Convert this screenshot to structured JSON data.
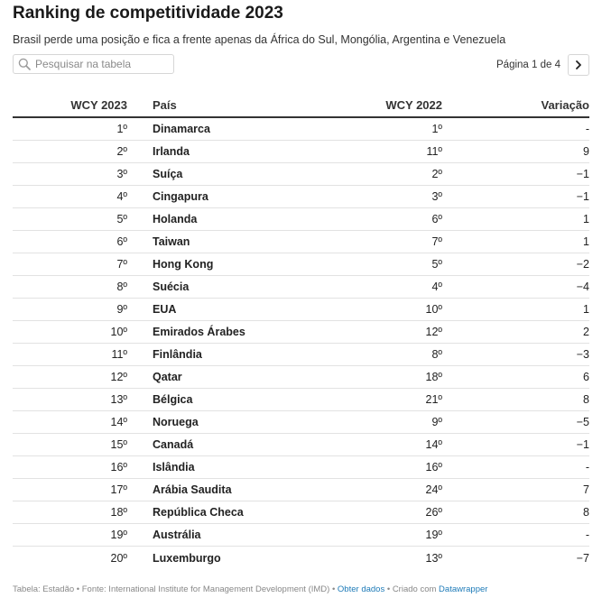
{
  "title": "Ranking de competitividade 2023",
  "subtitle": "Brasil perde uma posição e fica a frente apenas da África do Sul, Mongólia, Argentina e Venezuela",
  "search": {
    "placeholder": "Pesquisar na tabela",
    "value": "",
    "icon": "search-icon"
  },
  "pagination": {
    "label": "Página 1 de 4",
    "next_icon": "chevron-right-icon"
  },
  "table": {
    "headers": [
      "WCY 2023",
      "País",
      "WCY 2022",
      "Variação"
    ],
    "rows": [
      [
        "1º",
        "Dinamarca",
        "1º",
        "-"
      ],
      [
        "2º",
        "Irlanda",
        "11º",
        "9"
      ],
      [
        "3º",
        "Suíça",
        "2º",
        "−1"
      ],
      [
        "4º",
        "Cingapura",
        "3º",
        "−1"
      ],
      [
        "5º",
        "Holanda",
        "6º",
        "1"
      ],
      [
        "6º",
        "Taiwan",
        "7º",
        "1"
      ],
      [
        "7º",
        "Hong Kong",
        "5º",
        "−2"
      ],
      [
        "8º",
        "Suécia",
        "4º",
        "−4"
      ],
      [
        "9º",
        "EUA",
        "10º",
        "1"
      ],
      [
        "10º",
        "Emirados Árabes",
        "12º",
        "2"
      ],
      [
        "11º",
        "Finlândia",
        "8º",
        "−3"
      ],
      [
        "12º",
        "Qatar",
        "18º",
        "6"
      ],
      [
        "13º",
        "Bélgica",
        "21º",
        "8"
      ],
      [
        "14º",
        "Noruega",
        "9º",
        "−5"
      ],
      [
        "15º",
        "Canadá",
        "14º",
        "−1"
      ],
      [
        "16º",
        "Islândia",
        "16º",
        "-"
      ],
      [
        "17º",
        "Arábia Saudita",
        "24º",
        "7"
      ],
      [
        "18º",
        "República Checa",
        "26º",
        "8"
      ],
      [
        "19º",
        "Austrália",
        "19º",
        "-"
      ],
      [
        "20º",
        "Luxemburgo",
        "13º",
        "−7"
      ]
    ]
  },
  "footer": {
    "source_text": "Tabela: Estadão • Fonte: International Institute for Management Development (IMD) • ",
    "get_data_link": "Obter dados",
    "created_text": " • Criado com ",
    "datawrapper_link": "Datawrapper"
  },
  "colors": {
    "link": "#1e7bb8",
    "divider": "#e2e2e2",
    "header_rule": "#333333"
  }
}
